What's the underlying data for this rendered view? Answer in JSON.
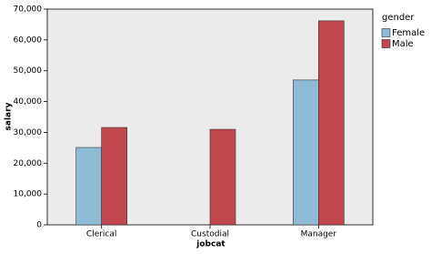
{
  "chart_data": {
    "type": "bar",
    "x_label": "jobcat",
    "y_label": "salary",
    "legend_title": "gender",
    "categories": [
      "Clerical",
      "Custodial",
      "Manager"
    ],
    "series": [
      {
        "name": "Female",
        "color": "#8fbcd4",
        "values": [
          25100,
          null,
          47000
        ]
      },
      {
        "name": "Male",
        "color": "#c0474f",
        "values": [
          31600,
          31000,
          66200
        ]
      }
    ],
    "ylim": [
      0,
      70000
    ],
    "yticks": [
      0,
      {
        "value": 10000,
        "label": "10,000"
      },
      {
        "value": 20000,
        "label": "20,000"
      },
      {
        "value": 30000,
        "label": "30,000"
      },
      {
        "value": 40000,
        "label": "40,000"
      },
      {
        "value": 50000,
        "label": "50,000"
      },
      {
        "value": 60000,
        "label": "60,000"
      },
      {
        "value": 70000,
        "label": "70,000"
      }
    ],
    "legend": "right"
  }
}
